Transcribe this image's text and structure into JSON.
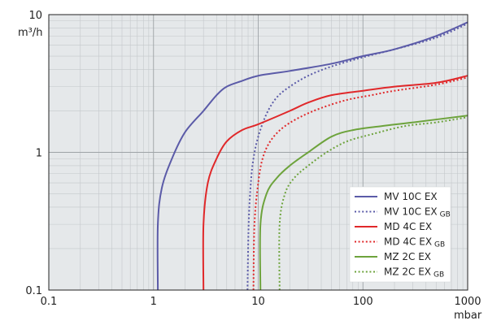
{
  "chart_data": {
    "type": "line",
    "x_scale": "log",
    "y_scale": "log",
    "xlim": [
      0.1,
      1000
    ],
    "ylim": [
      0.1,
      10
    ],
    "grid": true,
    "legend_position": "bottom-right",
    "x_unit": "mbar",
    "y_unit": "m³/h",
    "x_tick_labels": [
      "0.1",
      "1",
      "10",
      "100",
      "1000"
    ],
    "y_tick_labels": [
      "10",
      "1",
      "0.1"
    ],
    "series": [
      {
        "name": "MV 10C EX",
        "color": "#5b5ba8",
        "dash": "solid",
        "points": [
          [
            1.1,
            0.1
          ],
          [
            1.1,
            0.3
          ],
          [
            1.2,
            0.55
          ],
          [
            1.5,
            0.9
          ],
          [
            2,
            1.4
          ],
          [
            3,
            2.0
          ],
          [
            4,
            2.6
          ],
          [
            5,
            3.0
          ],
          [
            7,
            3.3
          ],
          [
            10,
            3.6
          ],
          [
            20,
            3.9
          ],
          [
            50,
            4.4
          ],
          [
            100,
            5.0
          ],
          [
            200,
            5.6
          ],
          [
            500,
            7.0
          ],
          [
            1000,
            8.8
          ]
        ]
      },
      {
        "name": "MV 10C EX",
        "name_sub": "GB",
        "color": "#5b5ba8",
        "dash": "dotted",
        "points": [
          [
            7.9,
            0.1
          ],
          [
            8.1,
            0.3
          ],
          [
            8.5,
            0.6
          ],
          [
            9,
            0.9
          ],
          [
            10,
            1.3
          ],
          [
            12,
            1.9
          ],
          [
            15,
            2.5
          ],
          [
            20,
            3.0
          ],
          [
            30,
            3.6
          ],
          [
            50,
            4.2
          ],
          [
            100,
            4.9
          ],
          [
            200,
            5.6
          ],
          [
            500,
            6.8
          ],
          [
            1000,
            8.6
          ]
        ]
      },
      {
        "name": "MD 4C EX",
        "color": "#e0282a",
        "dash": "solid",
        "points": [
          [
            3,
            0.1
          ],
          [
            3,
            0.3
          ],
          [
            3.3,
            0.6
          ],
          [
            4,
            0.9
          ],
          [
            5,
            1.2
          ],
          [
            7,
            1.45
          ],
          [
            10,
            1.6
          ],
          [
            20,
            2.0
          ],
          [
            30,
            2.3
          ],
          [
            50,
            2.6
          ],
          [
            100,
            2.8
          ],
          [
            200,
            3.0
          ],
          [
            500,
            3.2
          ],
          [
            1000,
            3.6
          ]
        ]
      },
      {
        "name": "MD 4C EX",
        "name_sub": "GB",
        "color": "#e0282a",
        "dash": "dotted",
        "points": [
          [
            9,
            0.1
          ],
          [
            9.2,
            0.3
          ],
          [
            10,
            0.6
          ],
          [
            11,
            0.9
          ],
          [
            13,
            1.2
          ],
          [
            17,
            1.5
          ],
          [
            25,
            1.8
          ],
          [
            40,
            2.1
          ],
          [
            70,
            2.4
          ],
          [
            120,
            2.6
          ],
          [
            200,
            2.8
          ],
          [
            500,
            3.1
          ],
          [
            1000,
            3.5
          ]
        ]
      },
      {
        "name": "MZ 2C EX",
        "color": "#6da33c",
        "dash": "solid",
        "points": [
          [
            10.5,
            0.1
          ],
          [
            10.5,
            0.3
          ],
          [
            12,
            0.5
          ],
          [
            15,
            0.65
          ],
          [
            20,
            0.8
          ],
          [
            30,
            1.0
          ],
          [
            50,
            1.3
          ],
          [
            80,
            1.45
          ],
          [
            150,
            1.55
          ],
          [
            300,
            1.65
          ],
          [
            1000,
            1.85
          ]
        ]
      },
      {
        "name": "MZ 2C EX",
        "name_sub": "GB",
        "color": "#6da33c",
        "dash": "dotted",
        "points": [
          [
            16,
            0.1
          ],
          [
            16,
            0.3
          ],
          [
            18,
            0.5
          ],
          [
            22,
            0.65
          ],
          [
            30,
            0.8
          ],
          [
            45,
            1.0
          ],
          [
            70,
            1.2
          ],
          [
            120,
            1.35
          ],
          [
            250,
            1.55
          ],
          [
            500,
            1.65
          ],
          [
            1000,
            1.8
          ]
        ]
      }
    ]
  }
}
